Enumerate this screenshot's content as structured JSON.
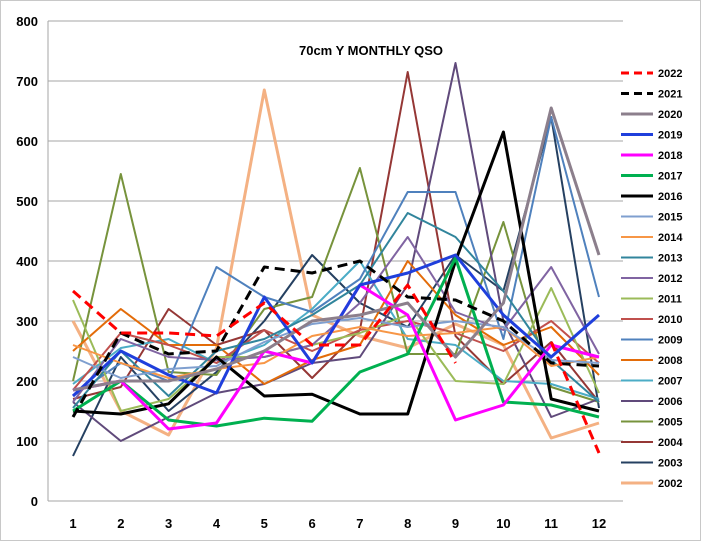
{
  "chart_data": {
    "type": "line",
    "title": "70cm Y MONTHLY QSO",
    "xlabel": "",
    "ylabel": "",
    "x": [
      1,
      2,
      3,
      4,
      5,
      6,
      7,
      8,
      9,
      10,
      11,
      12
    ],
    "ylim": [
      0,
      800
    ],
    "yticks": [
      0,
      100,
      200,
      300,
      400,
      500,
      600,
      700,
      800
    ],
    "grid": "horizontal",
    "legend": "right",
    "series": [
      {
        "name": "2022",
        "color": "#ff0000",
        "dash": "dashed",
        "width": 3,
        "values": [
          350,
          280,
          280,
          275,
          330,
          260,
          260,
          360,
          230,
          null,
          265,
          80
        ]
      },
      {
        "name": "2021",
        "color": "#000000",
        "dash": "dashed",
        "width": 3,
        "values": [
          140,
          280,
          245,
          250,
          390,
          380,
          400,
          340,
          335,
          300,
          230,
          225
        ]
      },
      {
        "name": "2020",
        "color": "#8c7f8c",
        "dash": "solid",
        "width": 3,
        "values": [
          185,
          200,
          200,
          220,
          250,
          300,
          310,
          330,
          240,
          330,
          655,
          410
        ]
      },
      {
        "name": "2019",
        "color": "#1f3fdc",
        "dash": "solid",
        "width": 3,
        "values": [
          175,
          250,
          210,
          180,
          340,
          230,
          360,
          380,
          410,
          310,
          240,
          310
        ]
      },
      {
        "name": "2018",
        "color": "#ff00ff",
        "dash": "solid",
        "width": 3,
        "values": [
          185,
          200,
          120,
          130,
          250,
          230,
          360,
          310,
          135,
          160,
          260,
          240
        ]
      },
      {
        "name": "2017",
        "color": "#00b050",
        "dash": "solid",
        "width": 3,
        "values": [
          150,
          200,
          135,
          125,
          138,
          133,
          215,
          245,
          405,
          165,
          160,
          140
        ]
      },
      {
        "name": "2016",
        "color": "#000000",
        "dash": "solid",
        "width": 3,
        "values": [
          150,
          145,
          162,
          240,
          175,
          178,
          145,
          145,
          400,
          615,
          170,
          150
        ]
      },
      {
        "name": "2015",
        "color": "#7f9fcf",
        "dash": "solid",
        "width": 2,
        "values": [
          240,
          205,
          220,
          225,
          265,
          295,
          305,
          290,
          300,
          290,
          235,
          230
        ]
      },
      {
        "name": "2014",
        "color": "#f79646",
        "dash": "solid",
        "width": 2,
        "values": [
          260,
          230,
          205,
          220,
          230,
          275,
          290,
          275,
          280,
          290,
          225,
          240
        ]
      },
      {
        "name": "2013",
        "color": "#31859c",
        "dash": "solid",
        "width": 2,
        "values": [
          155,
          250,
          175,
          250,
          270,
          310,
          360,
          480,
          440,
          350,
          235,
          165
        ]
      },
      {
        "name": "2012",
        "color": "#8064a2",
        "dash": "solid",
        "width": 2,
        "values": [
          165,
          270,
          240,
          235,
          240,
          260,
          330,
          440,
          315,
          285,
          390,
          245
        ]
      },
      {
        "name": "2011",
        "color": "#9bbb59",
        "dash": "solid",
        "width": 2,
        "values": [
          335,
          150,
          170,
          240,
          240,
          260,
          280,
          310,
          200,
          195,
          355,
          180
        ]
      },
      {
        "name": "2010",
        "color": "#c0504d",
        "dash": "solid",
        "width": 2,
        "values": [
          185,
          280,
          260,
          230,
          285,
          250,
          285,
          300,
          280,
          250,
          300,
          230
        ]
      },
      {
        "name": "2009",
        "color": "#4f81bd",
        "dash": "solid",
        "width": 2,
        "values": [
          175,
          230,
          200,
          390,
          340,
          315,
          370,
          515,
          515,
          270,
          640,
          340
        ]
      },
      {
        "name": "2008",
        "color": "#e36c09",
        "dash": "solid",
        "width": 2,
        "values": [
          250,
          320,
          260,
          260,
          195,
          235,
          260,
          400,
          310,
          260,
          290,
          210
        ]
      },
      {
        "name": "2007",
        "color": "#4bacc6",
        "dash": "solid",
        "width": 2,
        "values": [
          195,
          255,
          270,
          230,
          260,
          320,
          400,
          270,
          260,
          200,
          195,
          170
        ]
      },
      {
        "name": "2006",
        "color": "#604a7b",
        "dash": "solid",
        "width": 2,
        "values": [
          165,
          100,
          140,
          180,
          195,
          230,
          240,
          360,
          730,
          300,
          140,
          170
        ]
      },
      {
        "name": "2005",
        "color": "#77933c",
        "dash": "solid",
        "width": 2,
        "values": [
          200,
          545,
          215,
          210,
          320,
          340,
          555,
          245,
          245,
          465,
          190,
          165
        ]
      },
      {
        "name": "2004",
        "color": "#953735",
        "dash": "solid",
        "width": 2,
        "values": [
          170,
          190,
          320,
          260,
          285,
          205,
          285,
          715,
          275,
          195,
          265,
          165
        ]
      },
      {
        "name": "2003",
        "color": "#254061",
        "dash": "solid",
        "width": 2,
        "values": [
          75,
          240,
          150,
          215,
          300,
          410,
          330,
          290,
          410,
          350,
          640,
          155
        ]
      },
      {
        "name": "2002",
        "color": "#f4b183",
        "dash": "solid",
        "width": 3,
        "values": [
          300,
          150,
          110,
          255,
          685,
          310,
          275,
          255,
          295,
          260,
          105,
          130
        ]
      }
    ]
  }
}
